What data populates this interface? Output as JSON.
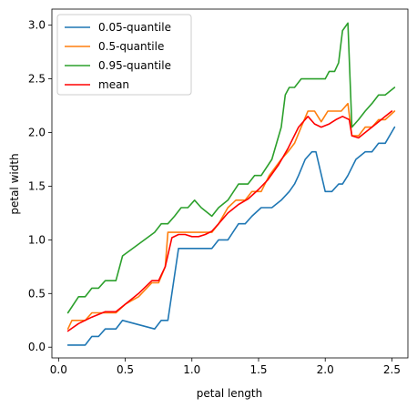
{
  "chart_data": {
    "type": "line",
    "title": "",
    "xlabel": "petal length",
    "ylabel": "petal width",
    "xlim": [
      -0.05,
      2.62
    ],
    "ylim": [
      -0.1,
      3.15
    ],
    "xticks": [
      0.0,
      0.5,
      1.0,
      1.5,
      2.0,
      2.5
    ],
    "xtick_labels": [
      "0.0",
      "0.5",
      "1.0",
      "1.5",
      "2.0",
      "2.5"
    ],
    "yticks": [
      0.0,
      0.5,
      1.0,
      1.5,
      2.0,
      2.5,
      3.0
    ],
    "ytick_labels": [
      "0.0",
      "0.5",
      "1.0",
      "1.5",
      "2.0",
      "2.5",
      "3.0"
    ],
    "grid": false,
    "legend_position": "top-left",
    "series": [
      {
        "name": "0.05-quantile",
        "color": "#1f77b4",
        "x": [
          0.07,
          0.2,
          0.25,
          0.3,
          0.35,
          0.43,
          0.48,
          0.72,
          0.77,
          0.82,
          0.9,
          1.15,
          1.2,
          1.27,
          1.35,
          1.4,
          1.45,
          1.52,
          1.6,
          1.67,
          1.73,
          1.77,
          1.8,
          1.85,
          1.9,
          1.93,
          2.0,
          2.05,
          2.1,
          2.13,
          2.17,
          2.23,
          2.3,
          2.35,
          2.4,
          2.45,
          2.52
        ],
        "y": [
          0.02,
          0.02,
          0.1,
          0.1,
          0.17,
          0.17,
          0.25,
          0.17,
          0.25,
          0.25,
          0.92,
          0.92,
          1.0,
          1.0,
          1.15,
          1.15,
          1.22,
          1.3,
          1.3,
          1.37,
          1.45,
          1.52,
          1.6,
          1.75,
          1.82,
          1.82,
          1.45,
          1.45,
          1.52,
          1.52,
          1.6,
          1.75,
          1.82,
          1.82,
          1.9,
          1.9,
          2.05
        ]
      },
      {
        "name": "0.5-quantile",
        "color": "#ff7f0e",
        "x": [
          0.07,
          0.1,
          0.2,
          0.25,
          0.3,
          0.35,
          0.43,
          0.5,
          0.6,
          0.7,
          0.75,
          0.8,
          0.82,
          1.15,
          1.2,
          1.27,
          1.33,
          1.4,
          1.45,
          1.52,
          1.58,
          1.67,
          1.72,
          1.77,
          1.82,
          1.87,
          1.92,
          1.97,
          2.02,
          2.07,
          2.12,
          2.17,
          2.2,
          2.25,
          2.3,
          2.35,
          2.4,
          2.45,
          2.52
        ],
        "y": [
          0.17,
          0.25,
          0.25,
          0.32,
          0.32,
          0.32,
          0.32,
          0.4,
          0.47,
          0.6,
          0.6,
          0.75,
          1.07,
          1.07,
          1.15,
          1.3,
          1.37,
          1.37,
          1.45,
          1.45,
          1.6,
          1.75,
          1.82,
          1.9,
          2.05,
          2.2,
          2.2,
          2.1,
          2.2,
          2.2,
          2.2,
          2.27,
          1.97,
          1.97,
          2.05,
          2.05,
          2.12,
          2.12,
          2.2
        ]
      },
      {
        "name": "0.95-quantile",
        "color": "#2ca02c",
        "x": [
          0.07,
          0.15,
          0.2,
          0.25,
          0.3,
          0.35,
          0.43,
          0.48,
          0.72,
          0.77,
          0.82,
          0.87,
          0.92,
          0.97,
          1.02,
          1.07,
          1.15,
          1.2,
          1.27,
          1.35,
          1.42,
          1.47,
          1.52,
          1.6,
          1.67,
          1.7,
          1.73,
          1.77,
          1.82,
          1.9,
          2.0,
          2.03,
          2.07,
          2.1,
          2.13,
          2.17,
          2.2,
          2.25,
          2.3,
          2.35,
          2.4,
          2.45,
          2.52
        ],
        "y": [
          0.32,
          0.47,
          0.47,
          0.55,
          0.55,
          0.62,
          0.62,
          0.85,
          1.07,
          1.15,
          1.15,
          1.22,
          1.3,
          1.3,
          1.37,
          1.3,
          1.22,
          1.3,
          1.37,
          1.52,
          1.52,
          1.6,
          1.6,
          1.75,
          2.05,
          2.35,
          2.42,
          2.42,
          2.5,
          2.5,
          2.5,
          2.57,
          2.57,
          2.65,
          2.95,
          3.02,
          2.05,
          2.12,
          2.2,
          2.27,
          2.35,
          2.35,
          2.42
        ]
      },
      {
        "name": "mean",
        "color": "#ff0000",
        "x": [
          0.07,
          0.15,
          0.25,
          0.35,
          0.43,
          0.5,
          0.6,
          0.7,
          0.75,
          0.8,
          0.85,
          0.9,
          0.95,
          1.0,
          1.05,
          1.1,
          1.15,
          1.2,
          1.27,
          1.35,
          1.42,
          1.5,
          1.57,
          1.65,
          1.72,
          1.8,
          1.87,
          1.92,
          1.97,
          2.03,
          2.08,
          2.13,
          2.18,
          2.2,
          2.25,
          2.3,
          2.35,
          2.4,
          2.45,
          2.5
        ],
        "y": [
          0.15,
          0.22,
          0.28,
          0.33,
          0.33,
          0.4,
          0.5,
          0.62,
          0.62,
          0.75,
          1.02,
          1.05,
          1.05,
          1.03,
          1.03,
          1.05,
          1.08,
          1.15,
          1.25,
          1.33,
          1.38,
          1.47,
          1.56,
          1.7,
          1.85,
          2.05,
          2.15,
          2.08,
          2.05,
          2.08,
          2.12,
          2.15,
          2.12,
          1.97,
          1.95,
          2.0,
          2.05,
          2.1,
          2.15,
          2.2
        ]
      }
    ]
  }
}
